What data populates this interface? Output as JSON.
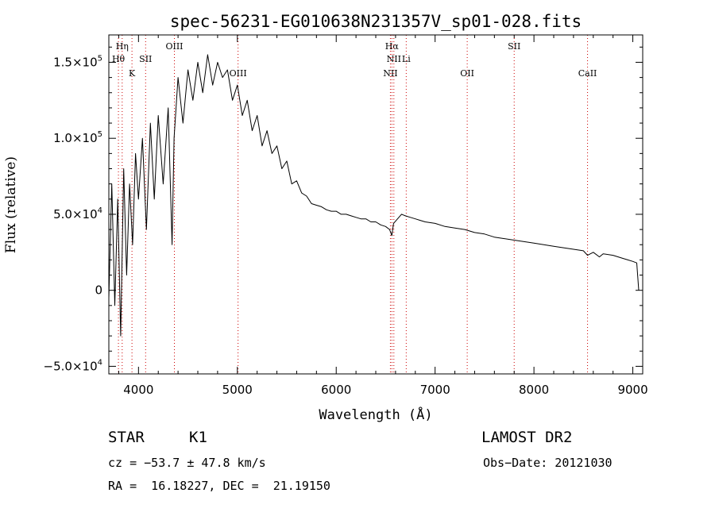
{
  "chart_data": {
    "type": "line",
    "title": "spec-56231-EG010638N231357V_sp01-028.fits",
    "xlabel": "Wavelength (Å)",
    "ylabel": "Flux (relative)",
    "xlim": [
      3700,
      9100
    ],
    "ylim": [
      -55000,
      168000
    ],
    "x_ticks": [
      {
        "value": 4000,
        "label": "4000"
      },
      {
        "value": 5000,
        "label": "5000"
      },
      {
        "value": 6000,
        "label": "6000"
      },
      {
        "value": 7000,
        "label": "7000"
      },
      {
        "value": 8000,
        "label": "8000"
      },
      {
        "value": 9000,
        "label": "9000"
      }
    ],
    "y_ticks": [
      {
        "value": -50000,
        "mant": "−5.0×10",
        "exp": "4"
      },
      {
        "value": 0,
        "mant": "0",
        "exp": ""
      },
      {
        "value": 50000,
        "mant": "5.0×10",
        "exp": "4"
      },
      {
        "value": 100000,
        "mant": "1.0×10",
        "exp": "5"
      },
      {
        "value": 150000,
        "mant": "1.5×10",
        "exp": "5"
      }
    ],
    "grid": false,
    "series_color": "#000000",
    "line_marker_color": "#cc0000",
    "series": [
      {
        "x": [
          3700,
          3730,
          3760,
          3790,
          3820,
          3850,
          3880,
          3910,
          3940,
          3970,
          4000,
          4040,
          4080,
          4120,
          4160,
          4200,
          4250,
          4300,
          4340,
          4360,
          4400,
          4450,
          4500,
          4550,
          4600,
          4650,
          4700,
          4750,
          4800,
          4850,
          4900,
          4950,
          5000,
          5050,
          5100,
          5150,
          5200,
          5250,
          5300,
          5350,
          5400,
          5450,
          5500,
          5550,
          5600,
          5650,
          5700,
          5750,
          5800,
          5850,
          5900,
          5950,
          6000,
          6050,
          6100,
          6150,
          6200,
          6250,
          6300,
          6350,
          6400,
          6450,
          6500,
          6540,
          6562,
          6580,
          6620,
          6660,
          6700,
          6750,
          6800,
          6850,
          6900,
          7000,
          7100,
          7200,
          7300,
          7400,
          7500,
          7600,
          7700,
          7800,
          7900,
          8000,
          8100,
          8200,
          8300,
          8400,
          8500,
          8542,
          8600,
          8662,
          8700,
          8800,
          8900,
          8950,
          9000,
          9040,
          9060
        ],
        "y": [
          -5000,
          70000,
          -10000,
          60000,
          -30000,
          80000,
          10000,
          70000,
          30000,
          90000,
          60000,
          100000,
          40000,
          110000,
          60000,
          115000,
          70000,
          120000,
          30000,
          100000,
          140000,
          110000,
          145000,
          125000,
          150000,
          130000,
          155000,
          135000,
          150000,
          140000,
          145000,
          125000,
          135000,
          115000,
          125000,
          105000,
          115000,
          95000,
          105000,
          90000,
          95000,
          80000,
          85000,
          70000,
          72000,
          64000,
          62000,
          57000,
          56000,
          55000,
          53000,
          52000,
          52000,
          50000,
          50000,
          49000,
          48000,
          47000,
          47000,
          45000,
          45000,
          43000,
          42000,
          40000,
          36000,
          44000,
          47000,
          50000,
          49000,
          48000,
          47000,
          46000,
          45000,
          44000,
          42000,
          41000,
          40000,
          38000,
          37000,
          35000,
          34000,
          33000,
          32000,
          31000,
          30000,
          29000,
          28000,
          27000,
          26000,
          23000,
          25000,
          22000,
          24000,
          23000,
          21000,
          20000,
          19000,
          18000,
          0
        ]
      }
    ],
    "line_markers": [
      {
        "x": 3835,
        "label": "Hη",
        "row": 0
      },
      {
        "x": 3797,
        "label": "Hθ",
        "row": 1
      },
      {
        "x": 3934,
        "label": "K",
        "row": 2
      },
      {
        "x": 4072,
        "label": "SII",
        "row": 1
      },
      {
        "x": 4363,
        "label": "OIII",
        "row": 0
      },
      {
        "x": 5007,
        "label": "OIII",
        "row": 2
      },
      {
        "x": 6563,
        "label": "Hα",
        "row": 0
      },
      {
        "x": 6583,
        "label": "NII",
        "row": 1
      },
      {
        "x": 6548,
        "label": "NII",
        "row": 2
      },
      {
        "x": 6708,
        "label": "Li",
        "row": 1
      },
      {
        "x": 7325,
        "label": "OII",
        "row": 2
      },
      {
        "x": 7800,
        "label": "SII",
        "row": 0
      },
      {
        "x": 8542,
        "label": "CaII",
        "row": 2
      }
    ]
  },
  "info": {
    "class": "STAR",
    "subclass": "K1",
    "survey": "LAMOST DR2",
    "cz": "cz = −53.7 ± 47.8 km/s",
    "obs_date": "Obs−Date: 20121030",
    "radec": "RA =  16.18227, DEC =  21.19150"
  }
}
